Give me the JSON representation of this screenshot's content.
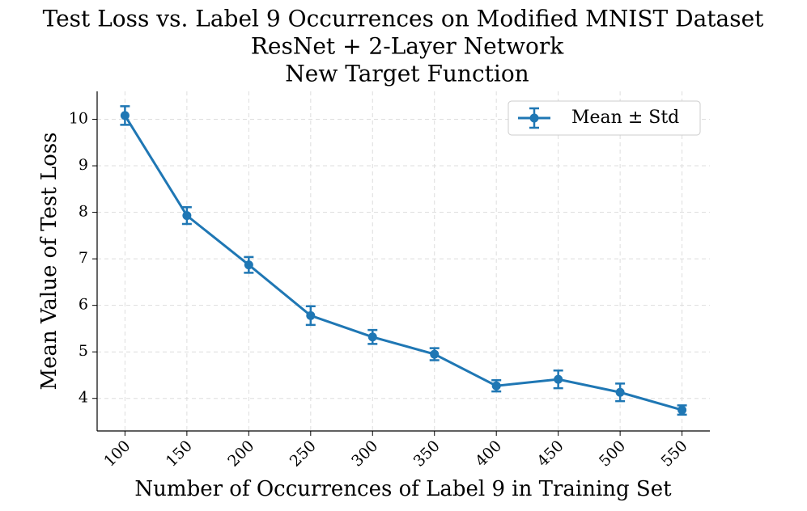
{
  "chart_data": {
    "type": "errorbar-line",
    "title": [
      "Test Loss vs. Label 9 Occurrences on Modified MNIST Dataset",
      "ResNet + 2-Layer Network",
      "New Target Function"
    ],
    "x_label": "Number of Occurrences of Label 9 in Training Set",
    "y_label": "Mean Value of Test Loss",
    "x": [
      100,
      150,
      200,
      250,
      300,
      350,
      400,
      450,
      500,
      550
    ],
    "series": [
      {
        "name": "Mean ± Std",
        "color": "#1f77b4",
        "values": [
          10.08,
          7.93,
          6.87,
          5.78,
          5.32,
          4.95,
          4.27,
          4.41,
          4.13,
          3.75
        ],
        "errors": [
          0.2,
          0.18,
          0.17,
          0.2,
          0.15,
          0.13,
          0.12,
          0.19,
          0.19,
          0.1
        ]
      }
    ],
    "xlim": [
      77.5,
      572.5
    ],
    "xticks": [
      100,
      150,
      200,
      250,
      300,
      350,
      400,
      450,
      500,
      550
    ],
    "ylim": [
      3.3,
      10.6
    ],
    "yticks": [
      4,
      5,
      6,
      7,
      8,
      9,
      10
    ],
    "grid": true,
    "legend": "upper right"
  }
}
